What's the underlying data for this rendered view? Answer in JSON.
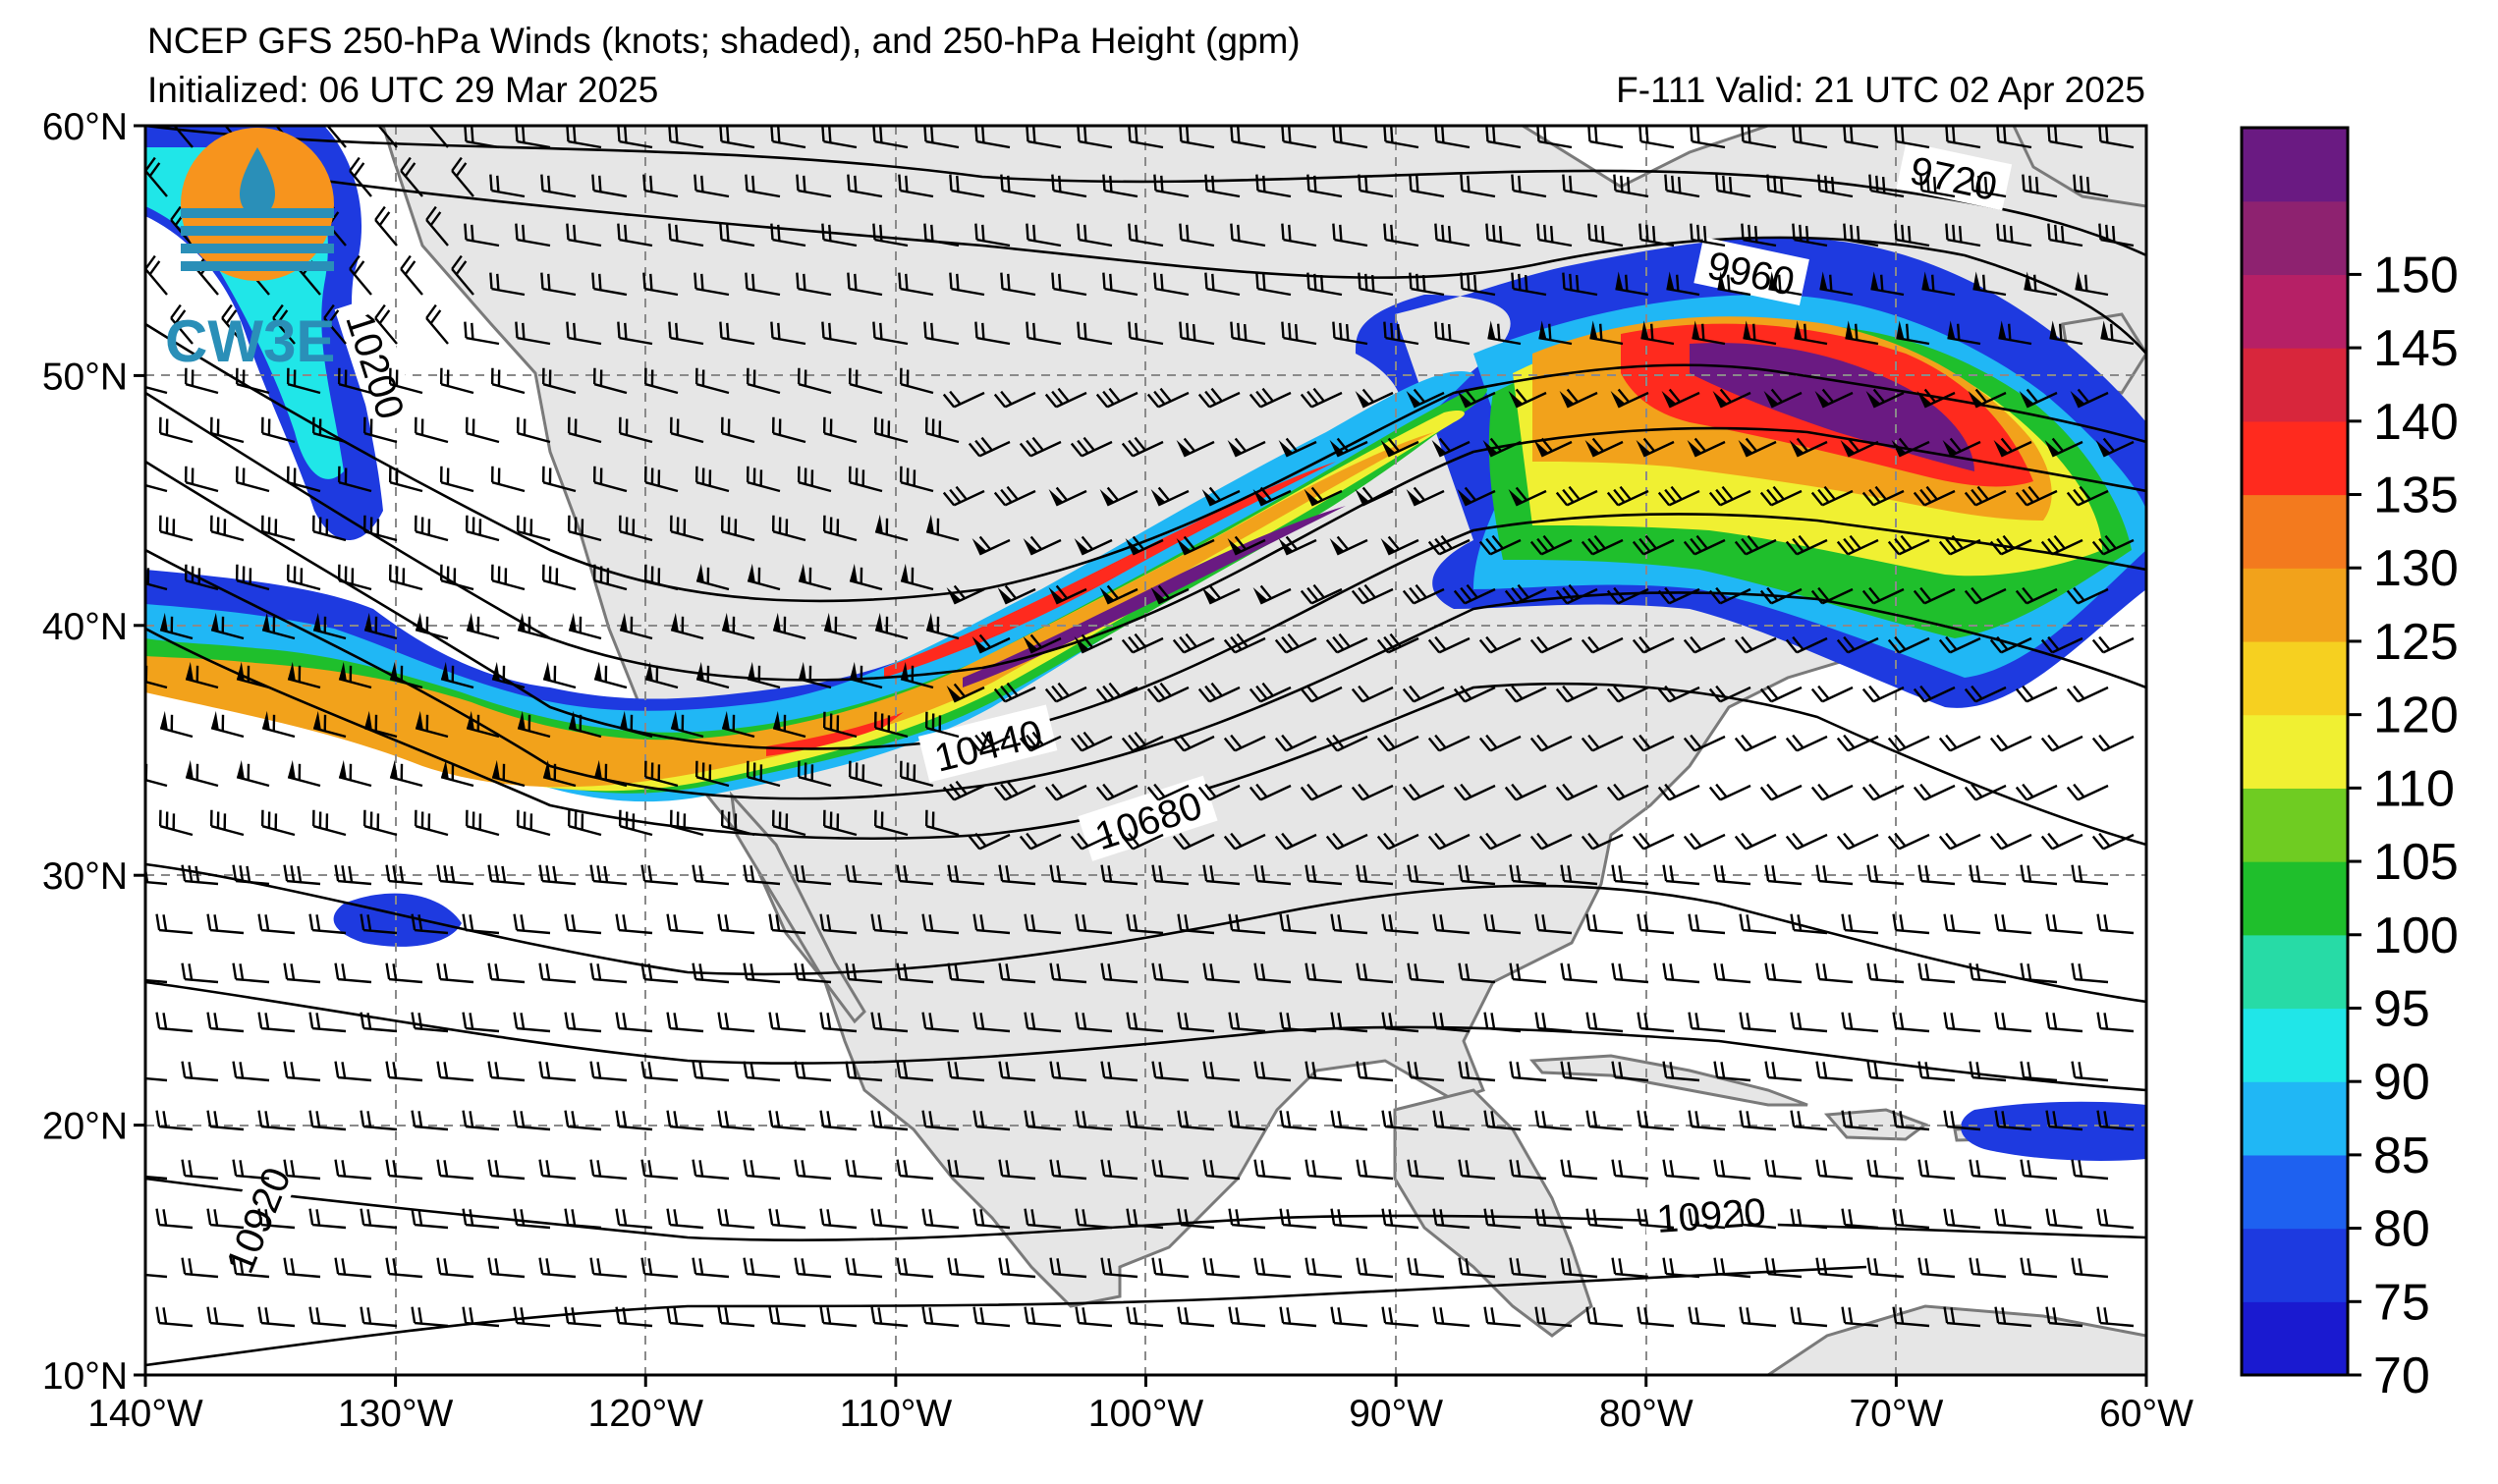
{
  "header": {
    "title": "NCEP GFS 250-hPa Winds (knots; shaded), and 250-hPa Height (gpm)",
    "initialized": "Initialized: 06 UTC 29 Mar 2025",
    "valid": "F-111  Valid: 21 UTC 02 Apr 2025"
  },
  "logo": {
    "text": "CW3E"
  },
  "map": {
    "lon_range": [
      -140,
      -60
    ],
    "lat_range": [
      10,
      60
    ],
    "x_ticks": [
      "140°W",
      "130°W",
      "120°W",
      "110°W",
      "100°W",
      "90°W",
      "80°W",
      "70°W",
      "60°W"
    ],
    "y_ticks": [
      "60°N",
      "50°N",
      "40°N",
      "30°N",
      "20°N",
      "10°N"
    ],
    "gridlines": "dashed",
    "land_color": "#e6e6e6",
    "ocean_color": "#ffffff",
    "contour_labels": [
      {
        "text": "9720",
        "lon": -67.7,
        "lat": 57.9,
        "angle": 12
      },
      {
        "text": "9960",
        "lon": -75.8,
        "lat": 54.1,
        "angle": 12
      },
      {
        "text": "10200",
        "lon": -130.8,
        "lat": 50.4,
        "angle": 72
      },
      {
        "text": "10440",
        "lon": -106.3,
        "lat": 35.2,
        "angle": -14
      },
      {
        "text": "10680",
        "lon": -99.9,
        "lat": 32.2,
        "angle": -18
      },
      {
        "text": "10920",
        "lon": -135.5,
        "lat": 16.2,
        "angle": -68
      },
      {
        "text": "10920",
        "lon": -77.4,
        "lat": 16.4,
        "angle": -4
      }
    ]
  },
  "colorbar": {
    "ticks": [
      "70",
      "75",
      "80",
      "85",
      "90",
      "95",
      "100",
      "105",
      "110",
      "120",
      "125",
      "130",
      "135",
      "140",
      "145",
      "150"
    ],
    "colors": [
      "#1a1ad0",
      "#1d3ae0",
      "#1e61f0",
      "#20b7f5",
      "#20e6e8",
      "#27dba6",
      "#1fbf2c",
      "#6fcc22",
      "#f0f032",
      "#f6d020",
      "#f2a21b",
      "#f37a1e",
      "#ff2a1e",
      "#d8263c",
      "#b62066",
      "#8e2270",
      "#6a1a82"
    ]
  }
}
